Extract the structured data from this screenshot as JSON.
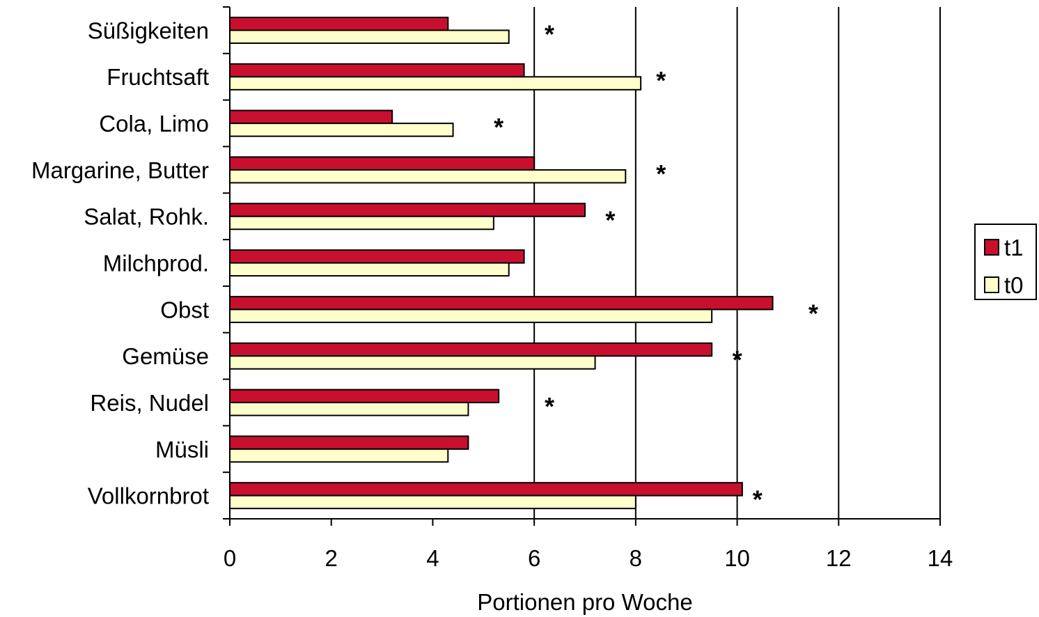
{
  "chart_data": {
    "type": "bar",
    "orientation": "horizontal",
    "xlabel": "Portionen pro Woche",
    "ylabel": "",
    "xlim": [
      0,
      14
    ],
    "xticks": [
      "0",
      "2",
      "4",
      "6",
      "8",
      "10",
      "12",
      "14"
    ],
    "grid": "vertical gridlines at 6, 8, 10, 12, 14",
    "legend_placement": "right",
    "categories": [
      "Süßigkeiten",
      "Fruchtsaft",
      "Cola, Limo",
      "Margarine, Butter",
      "Salat, Rohk.",
      "Milchprod.",
      "Obst",
      "Gemüse",
      "Reis, Nudel",
      "Müsli",
      "Vollkornbrot"
    ],
    "series": [
      {
        "name": "t1",
        "color": "#c8102e",
        "values": [
          4.3,
          5.8,
          3.2,
          6.0,
          7.0,
          5.8,
          10.7,
          9.5,
          5.3,
          4.7,
          10.1
        ]
      },
      {
        "name": "t0",
        "color": "#ffffcc",
        "values": [
          5.5,
          8.1,
          4.4,
          7.8,
          5.2,
          5.5,
          9.5,
          7.2,
          4.7,
          4.3,
          8.0
        ]
      }
    ],
    "annotations": [
      {
        "category": "Süßigkeiten",
        "text": "*",
        "x": 6.3
      },
      {
        "category": "Fruchtsaft",
        "text": "*",
        "x": 8.5
      },
      {
        "category": "Cola, Limo",
        "text": "*",
        "x": 5.3
      },
      {
        "category": "Margarine, Butter",
        "text": "*",
        "x": 8.5
      },
      {
        "category": "Salat, Rohk.",
        "text": "*",
        "x": 7.5
      },
      {
        "category": "Obst",
        "text": "*",
        "x": 11.5
      },
      {
        "category": "Gemüse",
        "text": "*",
        "x": 10.0
      },
      {
        "category": "Reis, Nudel",
        "text": "*",
        "x": 6.3
      },
      {
        "category": "Vollkornbrot",
        "text": "*",
        "x": 10.4
      }
    ]
  }
}
